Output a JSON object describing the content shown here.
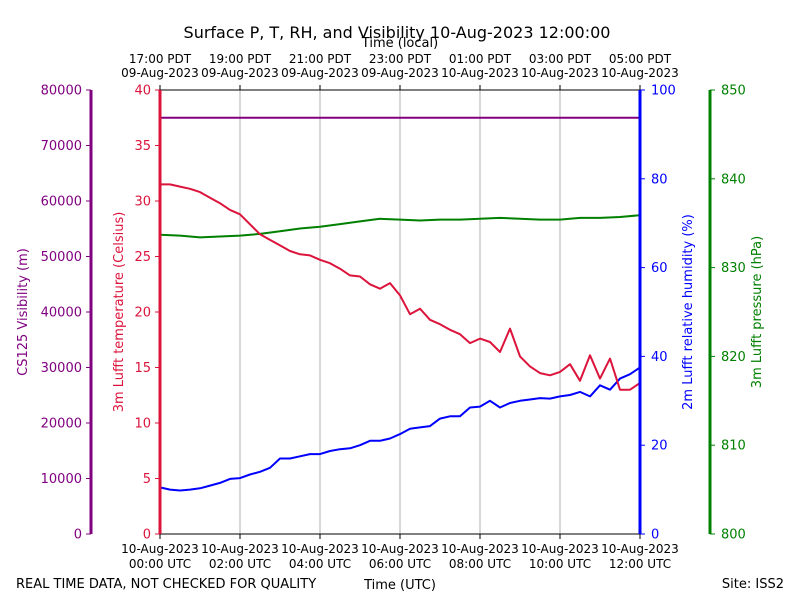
{
  "title": "Surface P, T, RH, and Visibility 10-Aug-2023 12:00:00",
  "footer_left": "REAL TIME DATA, NOT CHECKED FOR QUALITY",
  "footer_right": "Site: ISS2",
  "chart_data": {
    "type": "line",
    "title": "Surface P, T, RH, and Visibility 10-Aug-2023 12:00:00",
    "xlabel_bottom": "Time (UTC)",
    "xlabel_top": "Time (local)",
    "x_range": [
      "2023-08-10T00:00:00Z",
      "2023-08-10T12:00:00Z"
    ],
    "bottom_ticks": [
      {
        "line1": "10-Aug-2023",
        "line2": "00:00 UTC",
        "hour": 0
      },
      {
        "line1": "10-Aug-2023",
        "line2": "02:00 UTC",
        "hour": 2
      },
      {
        "line1": "10-Aug-2023",
        "line2": "04:00 UTC",
        "hour": 4
      },
      {
        "line1": "10-Aug-2023",
        "line2": "06:00 UTC",
        "hour": 6
      },
      {
        "line1": "10-Aug-2023",
        "line2": "08:00 UTC",
        "hour": 8
      },
      {
        "line1": "10-Aug-2023",
        "line2": "10:00 UTC",
        "hour": 10
      },
      {
        "line1": "10-Aug-2023",
        "line2": "12:00 UTC",
        "hour": 12
      }
    ],
    "top_ticks": [
      {
        "line1": "17:00 PDT",
        "line2": "09-Aug-2023",
        "hour": 0
      },
      {
        "line1": "19:00 PDT",
        "line2": "09-Aug-2023",
        "hour": 2
      },
      {
        "line1": "21:00 PDT",
        "line2": "09-Aug-2023",
        "hour": 4
      },
      {
        "line1": "23:00 PDT",
        "line2": "09-Aug-2023",
        "hour": 6
      },
      {
        "line1": "01:00 PDT",
        "line2": "10-Aug-2023",
        "hour": 8
      },
      {
        "line1": "03:00 PDT",
        "line2": "10-Aug-2023",
        "hour": 10
      },
      {
        "line1": "05:00 PDT",
        "line2": "10-Aug-2023",
        "hour": 12
      }
    ],
    "grid": "vertical",
    "axes": {
      "visibility": {
        "label": "CS125 Visibility (m)",
        "range": [
          0,
          80000
        ],
        "ticks": [
          0,
          10000,
          20000,
          30000,
          40000,
          50000,
          60000,
          70000,
          80000
        ],
        "color": "#800080"
      },
      "temperature": {
        "label": "3m Lufft temperature (Celsius)",
        "range": [
          0,
          40
        ],
        "ticks": [
          0,
          5,
          10,
          15,
          20,
          25,
          30,
          35,
          40
        ],
        "color": "#dc143c"
      },
      "humidity": {
        "label": "2m Lufft relative humidity (%)",
        "range": [
          0,
          100
        ],
        "ticks": [
          0,
          20,
          40,
          60,
          80,
          100
        ],
        "color": "#0000ff"
      },
      "pressure": {
        "label": "3m Lufft pressure (hPa)",
        "range": [
          800,
          850
        ],
        "ticks": [
          800,
          810,
          820,
          830,
          840,
          850
        ],
        "color": "#008000"
      }
    },
    "series": [
      {
        "axis": "visibility",
        "color": "#800080",
        "x": [
          0,
          12
        ],
        "y": [
          75000,
          75000
        ]
      },
      {
        "axis": "temperature",
        "color": "#dc143c",
        "x": [
          0,
          0.25,
          0.5,
          0.75,
          1.0,
          1.25,
          1.5,
          1.75,
          2.0,
          2.25,
          2.5,
          2.75,
          3.0,
          3.25,
          3.5,
          3.75,
          4.0,
          4.25,
          4.5,
          4.75,
          5.0,
          5.25,
          5.5,
          5.75,
          6.0,
          6.25,
          6.5,
          6.75,
          7.0,
          7.25,
          7.5,
          7.75,
          8.0,
          8.25,
          8.5,
          8.75,
          9.0,
          9.25,
          9.5,
          9.75,
          10.0,
          10.25,
          10.5,
          10.75,
          11.0,
          11.25,
          11.5,
          11.75,
          12.0
        ],
        "y": [
          31.5,
          31.5,
          31.3,
          31.1,
          30.8,
          30.3,
          29.8,
          29.2,
          28.8,
          27.9,
          27.0,
          26.5,
          26.0,
          25.5,
          25.2,
          25.1,
          24.7,
          24.4,
          23.9,
          23.3,
          23.2,
          22.5,
          22.1,
          22.6,
          21.5,
          19.8,
          20.3,
          19.3,
          18.9,
          18.4,
          18.0,
          17.2,
          17.6,
          17.3,
          16.4,
          18.5,
          16.0,
          15.1,
          14.5,
          14.3,
          14.6,
          15.3,
          13.8,
          16.1,
          14.0,
          15.8,
          13.0,
          13.0,
          13.6
        ]
      },
      {
        "axis": "humidity",
        "color": "#0000ff",
        "x": [
          0,
          0.25,
          0.5,
          0.75,
          1.0,
          1.25,
          1.5,
          1.75,
          2.0,
          2.25,
          2.5,
          2.75,
          3.0,
          3.25,
          3.5,
          3.75,
          4.0,
          4.25,
          4.5,
          4.75,
          5.0,
          5.25,
          5.5,
          5.75,
          6.0,
          6.25,
          6.5,
          6.75,
          7.0,
          7.25,
          7.5,
          7.75,
          8.0,
          8.25,
          8.5,
          8.75,
          9.0,
          9.25,
          9.5,
          9.75,
          10.0,
          10.25,
          10.5,
          10.75,
          11.0,
          11.25,
          11.5,
          11.75,
          12.0
        ],
        "y": [
          10.5,
          10.0,
          9.8,
          10.0,
          10.3,
          10.9,
          11.5,
          12.4,
          12.6,
          13.4,
          14.0,
          14.9,
          17.0,
          17.0,
          17.5,
          18.0,
          18.0,
          18.7,
          19.1,
          19.3,
          20.0,
          21.0,
          21.0,
          21.5,
          22.5,
          23.7,
          24.0,
          24.3,
          26.0,
          26.5,
          26.5,
          28.5,
          28.7,
          30.0,
          28.5,
          29.5,
          30.0,
          30.3,
          30.6,
          30.5,
          31.0,
          31.3,
          32.0,
          31.0,
          33.5,
          32.5,
          35.0,
          36.0,
          37.5
        ]
      },
      {
        "axis": "pressure",
        "color": "#008000",
        "x": [
          0,
          0.5,
          1.0,
          1.5,
          2.0,
          2.5,
          3.0,
          3.5,
          4.0,
          4.5,
          5.0,
          5.5,
          6.0,
          6.5,
          7.0,
          7.5,
          8.0,
          8.5,
          9.0,
          9.5,
          10.0,
          10.5,
          11.0,
          11.5,
          12.0
        ],
        "y": [
          833.7,
          833.6,
          833.4,
          833.5,
          833.6,
          833.8,
          834.1,
          834.4,
          834.6,
          834.9,
          835.2,
          835.5,
          835.4,
          835.3,
          835.4,
          835.4,
          835.5,
          835.6,
          835.5,
          835.4,
          835.4,
          835.6,
          835.6,
          835.7,
          835.9
        ]
      }
    ]
  }
}
